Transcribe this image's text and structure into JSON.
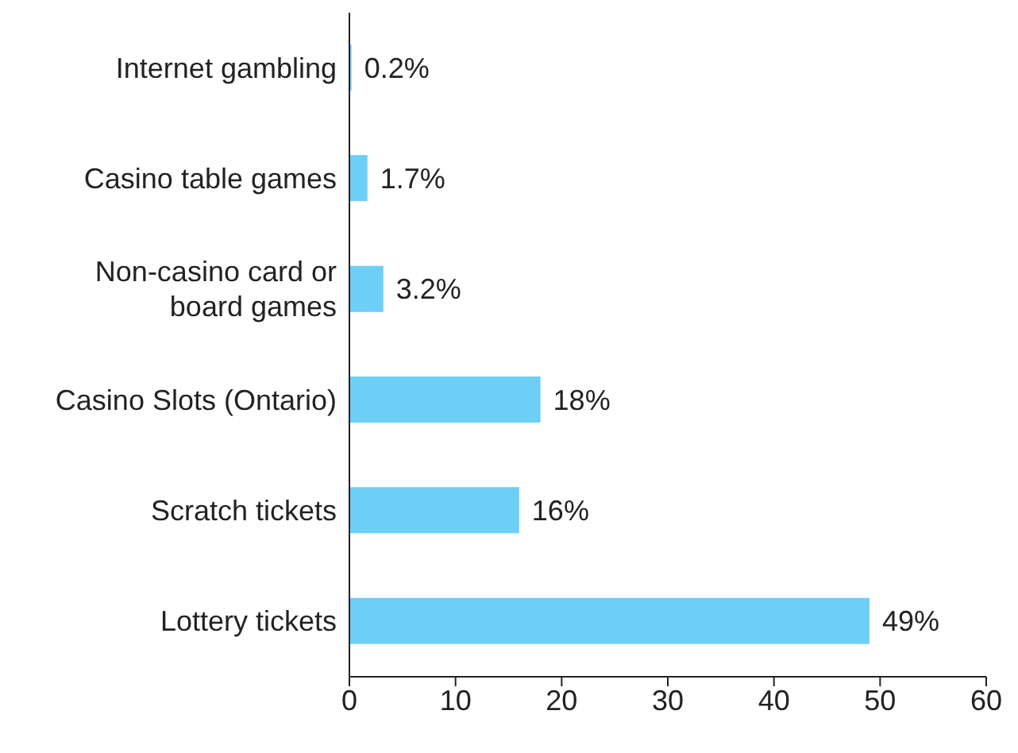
{
  "chart_data": {
    "type": "bar",
    "orientation": "horizontal",
    "categories": [
      "Internet gambling",
      "Casino table games",
      "Non-casino card or board games",
      "Casino Slots (Ontario)",
      "Scratch tickets",
      "Lottery tickets"
    ],
    "values": [
      0.2,
      1.7,
      3.2,
      18,
      16,
      49
    ],
    "value_labels": [
      "0.2%",
      "1.7%",
      "3.2%",
      "18%",
      "16%",
      "49%"
    ],
    "color": "#6dcff6",
    "xlim": [
      0,
      60
    ],
    "xticks": [
      0,
      10,
      20,
      30,
      40,
      50,
      60
    ],
    "grid": false,
    "legend": false
  }
}
